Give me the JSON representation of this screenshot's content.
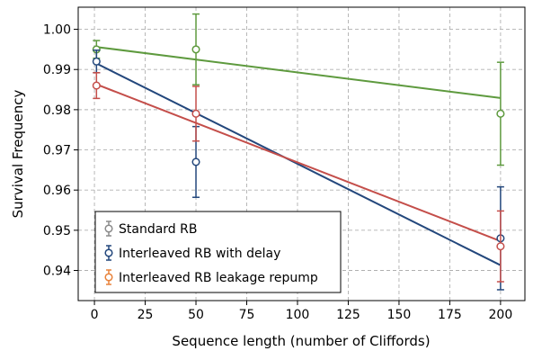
{
  "chart_data": {
    "type": "scatter",
    "xlabel": "Sequence length (number of Cliffords)",
    "ylabel": "Survival Frequency",
    "xlim": [
      -8,
      212
    ],
    "ylim": [
      0.9325,
      1.0055
    ],
    "xticks": [
      0,
      25,
      50,
      75,
      100,
      125,
      150,
      175,
      200
    ],
    "yticks": [
      0.94,
      0.95,
      0.96,
      0.97,
      0.98,
      0.99,
      1.0
    ],
    "ytick_labels": [
      "0.94",
      "0.95",
      "0.96",
      "0.97",
      "0.98",
      "0.99",
      "1.00"
    ],
    "grid": true,
    "legend_position": "lower-left",
    "series": [
      {
        "name": "Standard RB",
        "legend_color": "#8a8a8a",
        "data_color": "#5e9a3e",
        "points": [
          {
            "x": 1,
            "y": 0.995,
            "err": 0.0022
          },
          {
            "x": 50,
            "y": 0.995,
            "err": 0.0088
          },
          {
            "x": 200,
            "y": 0.979,
            "err": 0.0128
          }
        ],
        "fit": {
          "x": [
            1,
            200
          ],
          "y": [
            0.9956,
            0.9829
          ]
        }
      },
      {
        "name": "Interleaved RB with delay",
        "legend_color": "#23477c",
        "data_color": "#23477c",
        "points": [
          {
            "x": 1,
            "y": 0.992,
            "err": 0.0028
          },
          {
            "x": 50,
            "y": 0.967,
            "err": 0.0088
          },
          {
            "x": 200,
            "y": 0.948,
            "err": 0.0128
          }
        ],
        "fit": {
          "x": [
            1,
            200
          ],
          "y": [
            0.9915,
            0.9413
          ]
        }
      },
      {
        "name": "Interleaved RB leakage repump",
        "legend_color": "#e8823a",
        "data_color": "#c44e4a",
        "points": [
          {
            "x": 1,
            "y": 0.986,
            "err": 0.0032
          },
          {
            "x": 50,
            "y": 0.979,
            "err": 0.0068
          },
          {
            "x": 200,
            "y": 0.946,
            "err": 0.0088
          }
        ],
        "fit": {
          "x": [
            1,
            200
          ],
          "y": [
            0.9863,
            0.9473
          ]
        }
      }
    ]
  }
}
